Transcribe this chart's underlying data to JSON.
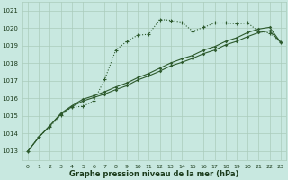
{
  "xlabel": "Graphe pression niveau de la mer (hPa)",
  "background_color": "#c8e8e0",
  "grid_color": "#aaccbb",
  "line_color": "#2d5a2d",
  "ylim": [
    1012.5,
    1021.5
  ],
  "xlim": [
    -0.5,
    23.5
  ],
  "yticks": [
    1013,
    1014,
    1015,
    1016,
    1017,
    1018,
    1019,
    1020,
    1021
  ],
  "xticks": [
    0,
    1,
    2,
    3,
    4,
    5,
    6,
    7,
    8,
    9,
    10,
    11,
    12,
    13,
    14,
    15,
    16,
    17,
    18,
    19,
    20,
    21,
    22,
    23
  ],
  "s1_y": [
    1013.0,
    1013.8,
    1014.4,
    1015.05,
    1015.5,
    1015.55,
    1015.85,
    1017.1,
    1018.75,
    1019.25,
    1019.6,
    1019.65,
    1020.5,
    1020.45,
    1020.35,
    1019.82,
    1020.05,
    1020.3,
    1020.3,
    1020.25,
    1020.3,
    1019.82,
    1019.72,
    1019.2
  ],
  "s2_y": [
    1013.0,
    1013.8,
    1014.45,
    1015.1,
    1015.53,
    1015.85,
    1016.05,
    1016.25,
    1016.5,
    1016.72,
    1017.05,
    1017.28,
    1017.55,
    1017.85,
    1018.05,
    1018.28,
    1018.55,
    1018.75,
    1019.05,
    1019.25,
    1019.52,
    1019.75,
    1019.85,
    1019.2
  ],
  "s3_y": [
    1013.0,
    1013.8,
    1014.45,
    1015.15,
    1015.58,
    1015.95,
    1016.15,
    1016.38,
    1016.65,
    1016.88,
    1017.18,
    1017.42,
    1017.72,
    1018.02,
    1018.25,
    1018.45,
    1018.75,
    1018.95,
    1019.25,
    1019.45,
    1019.75,
    1019.95,
    1020.05,
    1019.2
  ]
}
